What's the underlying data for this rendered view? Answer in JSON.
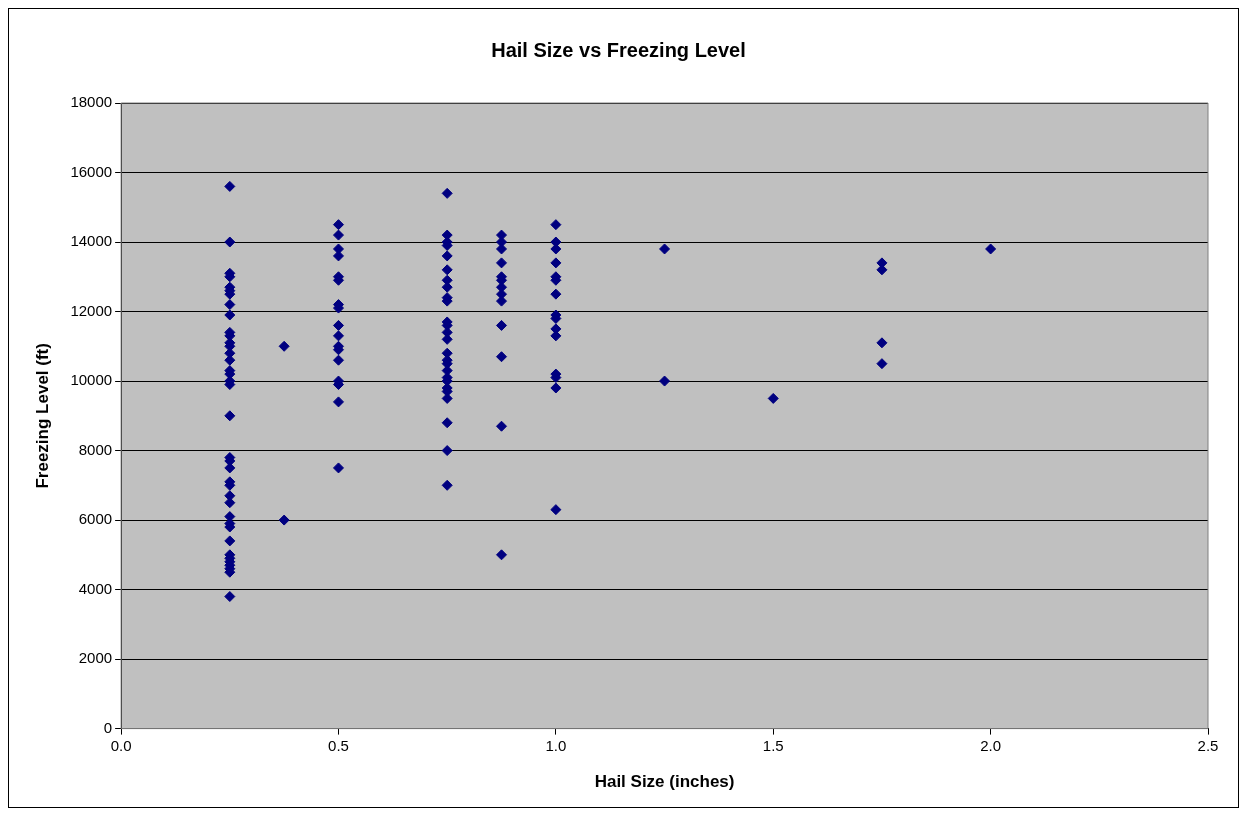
{
  "chart_data": {
    "type": "scatter",
    "title": "Hail Size vs Freezing Level",
    "xlabel": "Hail Size (inches)",
    "ylabel": "Freezing Level (ft)",
    "series": [
      {
        "color": "#000080",
        "x": [
          0.25,
          0.25,
          0.25,
          0.25,
          0.25,
          0.25,
          0.25,
          0.25,
          0.25,
          0.25,
          0.25,
          0.25,
          0.25,
          0.25,
          0.25,
          0.25,
          0.25,
          0.25,
          0.25,
          0.25,
          0.25,
          0.25,
          0.25,
          0.25,
          0.25,
          0.25,
          0.25,
          0.25,
          0.25,
          0.25,
          0.25,
          0.25,
          0.25,
          0.25,
          0.25,
          0.25,
          0.25,
          0.25,
          0.375,
          0.375,
          0.5,
          0.5,
          0.5,
          0.5,
          0.5,
          0.5,
          0.5,
          0.5,
          0.5,
          0.5,
          0.5,
          0.5,
          0.5,
          0.5,
          0.5,
          0.5,
          0.5,
          0.75,
          0.75,
          0.75,
          0.75,
          0.75,
          0.75,
          0.75,
          0.75,
          0.75,
          0.75,
          0.75,
          0.75,
          0.75,
          0.75,
          0.75,
          0.75,
          0.75,
          0.75,
          0.75,
          0.75,
          0.75,
          0.75,
          0.75,
          0.75,
          0.75,
          0.75,
          0.875,
          0.875,
          0.875,
          0.875,
          0.875,
          0.875,
          0.875,
          0.875,
          0.875,
          0.875,
          0.875,
          0.875,
          0.875,
          1,
          1,
          1,
          1,
          1,
          1,
          1,
          1,
          1,
          1,
          1,
          1,
          1,
          1,
          1,
          1.25,
          1.25,
          1.5,
          1.75,
          1.75,
          1.75,
          1.75,
          2
        ],
        "values": [
          15600,
          14000,
          13100,
          13000,
          12700,
          12600,
          12500,
          12200,
          11900,
          11400,
          11300,
          11100,
          11000,
          10800,
          10600,
          10300,
          10200,
          10000,
          9900,
          9000,
          7800,
          7700,
          7500,
          7100,
          7000,
          6700,
          6500,
          6100,
          5900,
          5800,
          5400,
          5000,
          4900,
          4800,
          4700,
          4600,
          4500,
          3800,
          11000,
          6000,
          14500,
          14200,
          13800,
          13600,
          13000,
          12900,
          12200,
          12100,
          11600,
          11300,
          11000,
          10900,
          10600,
          10000,
          9900,
          9400,
          7500,
          15400,
          14200,
          14000,
          13900,
          13600,
          13200,
          12900,
          12700,
          12400,
          12300,
          11700,
          11600,
          11400,
          11200,
          10800,
          10600,
          10500,
          10300,
          10100,
          10000,
          9800,
          9700,
          9500,
          8800,
          8000,
          7000,
          14200,
          14000,
          13800,
          13400,
          13000,
          12900,
          12700,
          12500,
          12300,
          11600,
          10700,
          8700,
          5000,
          14500,
          14000,
          13800,
          13400,
          13000,
          12900,
          12500,
          11900,
          11800,
          11500,
          11300,
          10200,
          10100,
          9800,
          6300,
          13800,
          10000,
          9500,
          13400,
          13200,
          11100,
          10500,
          13800
        ]
      }
    ],
    "xlim": [
      0,
      2.5
    ],
    "xticks": [
      {
        "value": 0,
        "label": "0.0"
      },
      {
        "value": 0.5,
        "label": "0.5"
      },
      {
        "value": 1,
        "label": "1.0"
      },
      {
        "value": 1.5,
        "label": "1.5"
      },
      {
        "value": 2,
        "label": "2.0"
      },
      {
        "value": 2.5,
        "label": "2.5"
      }
    ],
    "ylim": [
      0,
      18000
    ],
    "yticks": [
      0,
      2000,
      4000,
      6000,
      8000,
      10000,
      12000,
      14000,
      16000,
      18000
    ],
    "grid": "y",
    "legend": false,
    "marker": "diamond"
  }
}
